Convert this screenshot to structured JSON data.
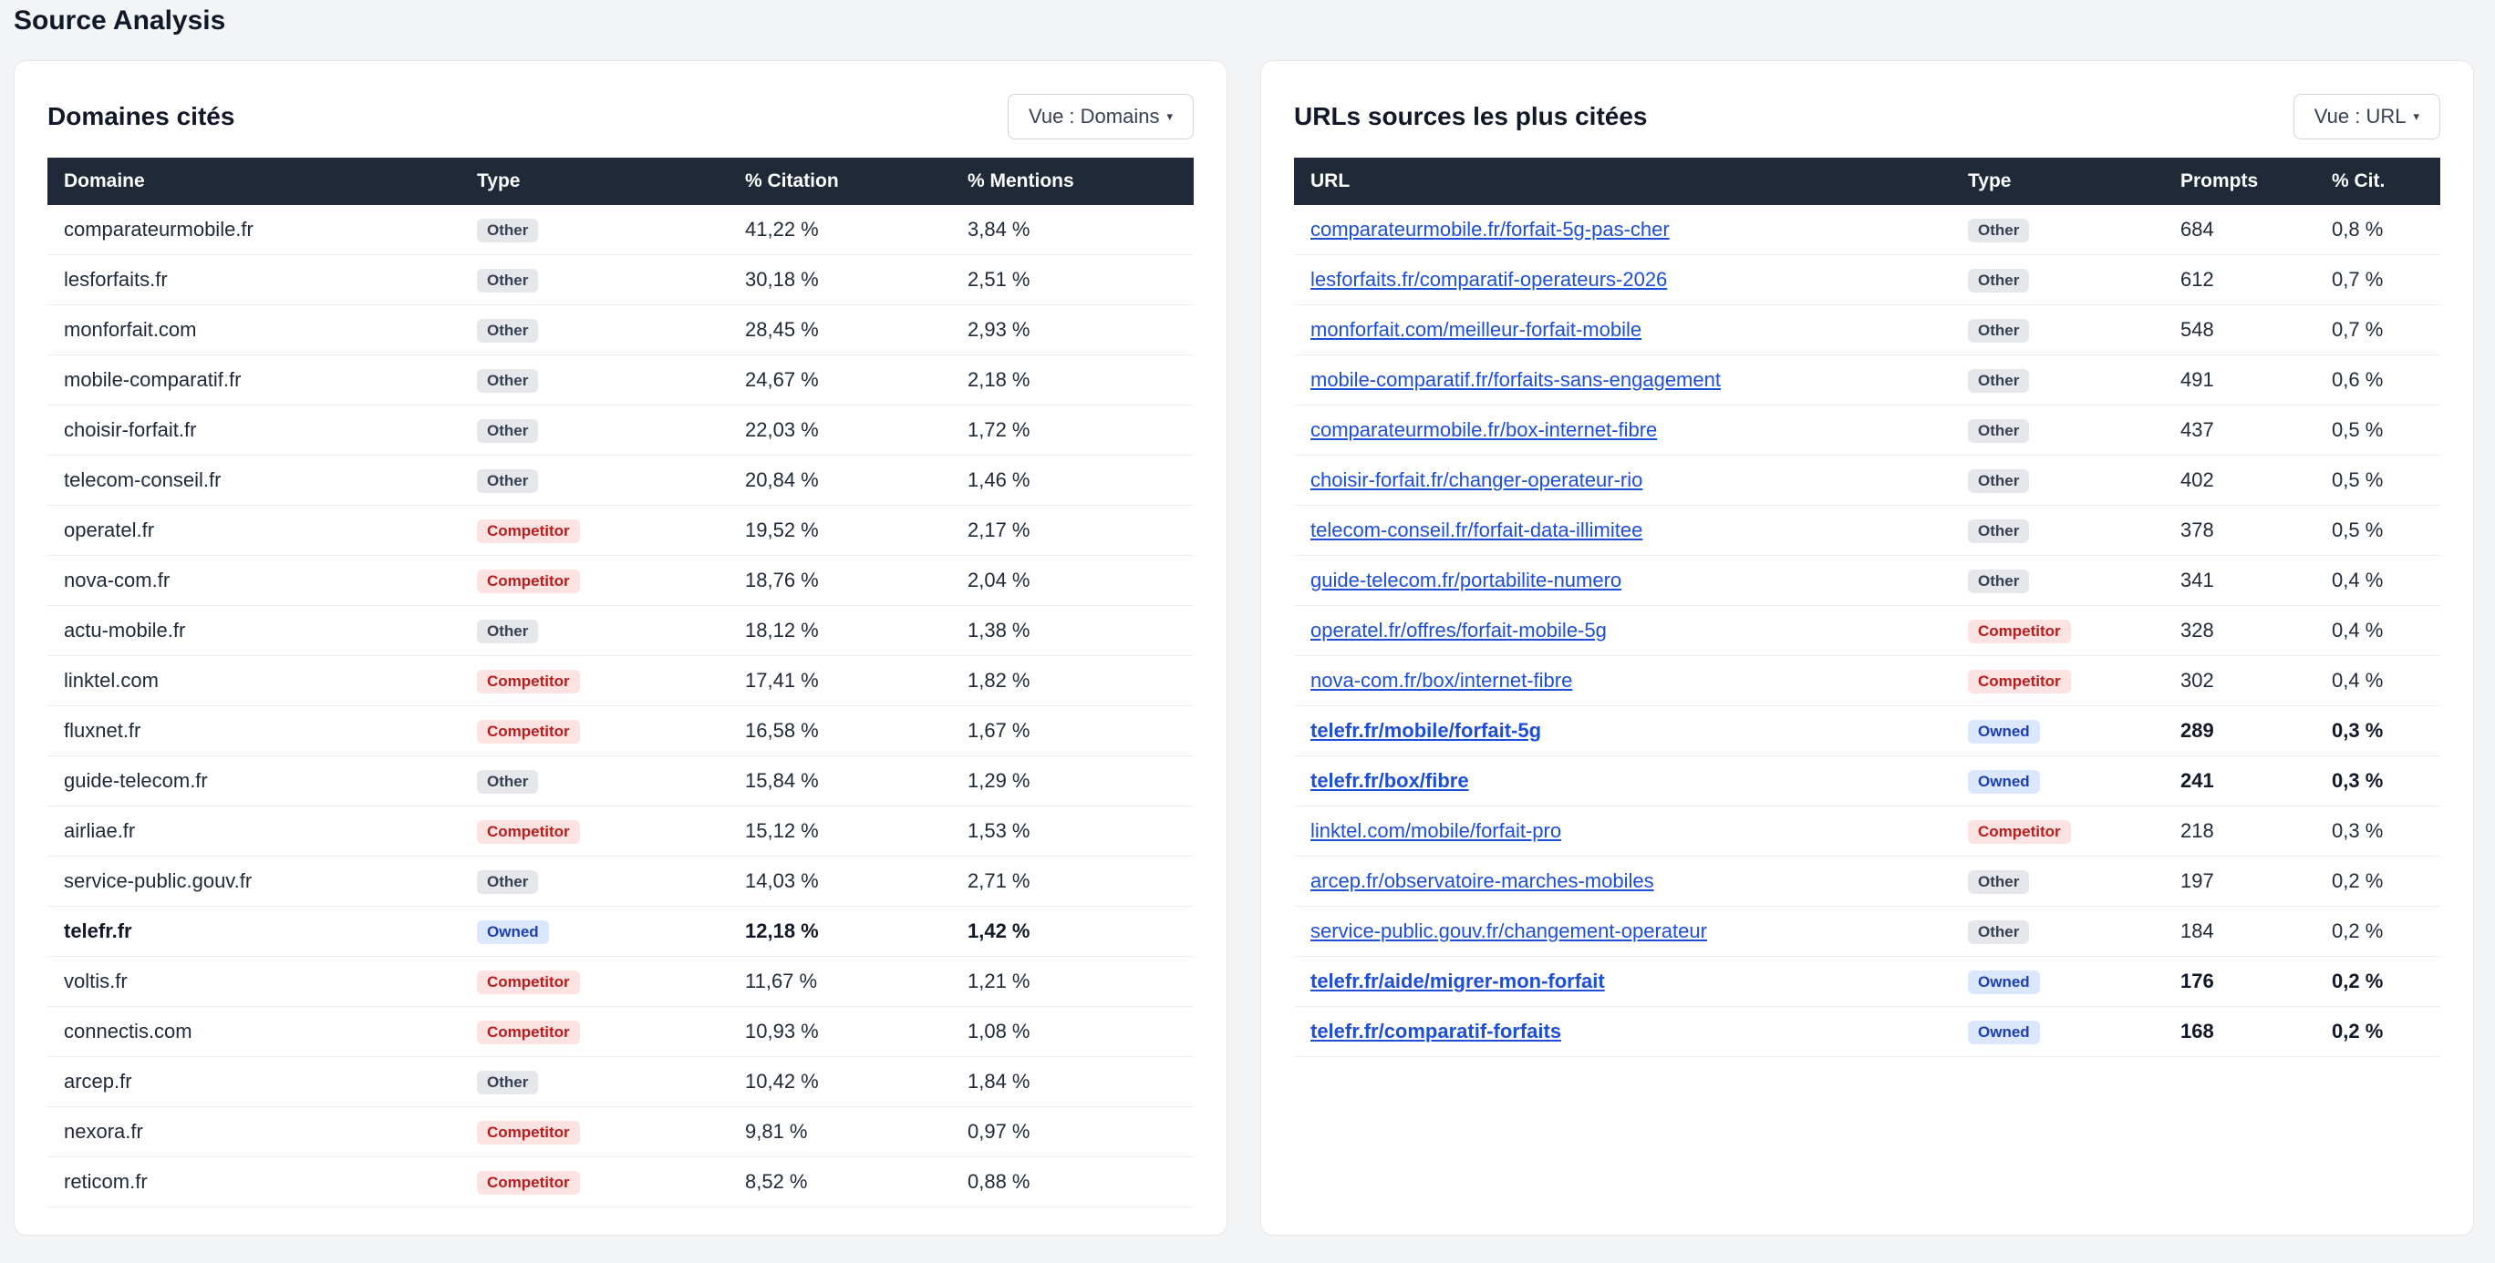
{
  "page": {
    "title": "Source Analysis"
  },
  "colors": {
    "header_bg": "#1f2937",
    "link": "#1d4ed8",
    "badge_other_bg": "#e5e7eb",
    "badge_competitor_bg": "#fde2e2",
    "badge_owned_bg": "#dbe7fe"
  },
  "domains_panel": {
    "title": "Domaines cités",
    "view_button": "Vue : Domains",
    "caret_icon": "▾",
    "columns": [
      "Domaine",
      "Type",
      "% Citation",
      "% Mentions"
    ],
    "rows": [
      {
        "domain": "comparateurmobile.fr",
        "type": "Other",
        "citation": "41,22 %",
        "mentions": "3,84 %"
      },
      {
        "domain": "lesforfaits.fr",
        "type": "Other",
        "citation": "30,18 %",
        "mentions": "2,51 %"
      },
      {
        "domain": "monforfait.com",
        "type": "Other",
        "citation": "28,45 %",
        "mentions": "2,93 %"
      },
      {
        "domain": "mobile-comparatif.fr",
        "type": "Other",
        "citation": "24,67 %",
        "mentions": "2,18 %"
      },
      {
        "domain": "choisir-forfait.fr",
        "type": "Other",
        "citation": "22,03 %",
        "mentions": "1,72 %"
      },
      {
        "domain": "telecom-conseil.fr",
        "type": "Other",
        "citation": "20,84 %",
        "mentions": "1,46 %"
      },
      {
        "domain": "operatel.fr",
        "type": "Competitor",
        "citation": "19,52 %",
        "mentions": "2,17 %"
      },
      {
        "domain": "nova-com.fr",
        "type": "Competitor",
        "citation": "18,76 %",
        "mentions": "2,04 %"
      },
      {
        "domain": "actu-mobile.fr",
        "type": "Other",
        "citation": "18,12 %",
        "mentions": "1,38 %"
      },
      {
        "domain": "linktel.com",
        "type": "Competitor",
        "citation": "17,41 %",
        "mentions": "1,82 %"
      },
      {
        "domain": "fluxnet.fr",
        "type": "Competitor",
        "citation": "16,58 %",
        "mentions": "1,67 %"
      },
      {
        "domain": "guide-telecom.fr",
        "type": "Other",
        "citation": "15,84 %",
        "mentions": "1,29 %"
      },
      {
        "domain": "airliae.fr",
        "type": "Competitor",
        "citation": "15,12 %",
        "mentions": "1,53 %"
      },
      {
        "domain": "service-public.gouv.fr",
        "type": "Other",
        "citation": "14,03 %",
        "mentions": "2,71 %"
      },
      {
        "domain": "telefr.fr",
        "type": "Owned",
        "citation": "12,18 %",
        "mentions": "1,42 %"
      },
      {
        "domain": "voltis.fr",
        "type": "Competitor",
        "citation": "11,67 %",
        "mentions": "1,21 %"
      },
      {
        "domain": "connectis.com",
        "type": "Competitor",
        "citation": "10,93 %",
        "mentions": "1,08 %"
      },
      {
        "domain": "arcep.fr",
        "type": "Other",
        "citation": "10,42 %",
        "mentions": "1,84 %"
      },
      {
        "domain": "nexora.fr",
        "type": "Competitor",
        "citation": "9,81 %",
        "mentions": "0,97 %"
      },
      {
        "domain": "reticom.fr",
        "type": "Competitor",
        "citation": "8,52 %",
        "mentions": "0,88 %"
      }
    ]
  },
  "urls_panel": {
    "title": "URLs sources les plus citées",
    "view_button": "Vue : URL",
    "caret_icon": "▾",
    "columns": [
      "URL",
      "Type",
      "Prompts",
      "% Cit."
    ],
    "rows": [
      {
        "url": "comparateurmobile.fr/forfait-5g-pas-cher",
        "type": "Other",
        "prompts": "684",
        "cit": "0,8 %"
      },
      {
        "url": "lesforfaits.fr/comparatif-operateurs-2026",
        "type": "Other",
        "prompts": "612",
        "cit": "0,7 %"
      },
      {
        "url": "monforfait.com/meilleur-forfait-mobile",
        "type": "Other",
        "prompts": "548",
        "cit": "0,7 %"
      },
      {
        "url": "mobile-comparatif.fr/forfaits-sans-engagement",
        "type": "Other",
        "prompts": "491",
        "cit": "0,6 %"
      },
      {
        "url": "comparateurmobile.fr/box-internet-fibre",
        "type": "Other",
        "prompts": "437",
        "cit": "0,5 %"
      },
      {
        "url": "choisir-forfait.fr/changer-operateur-rio",
        "type": "Other",
        "prompts": "402",
        "cit": "0,5 %"
      },
      {
        "url": "telecom-conseil.fr/forfait-data-illimitee",
        "type": "Other",
        "prompts": "378",
        "cit": "0,5 %"
      },
      {
        "url": "guide-telecom.fr/portabilite-numero",
        "type": "Other",
        "prompts": "341",
        "cit": "0,4 %"
      },
      {
        "url": "operatel.fr/offres/forfait-mobile-5g",
        "type": "Competitor",
        "prompts": "328",
        "cit": "0,4 %"
      },
      {
        "url": "nova-com.fr/box/internet-fibre",
        "type": "Competitor",
        "prompts": "302",
        "cit": "0,4 %"
      },
      {
        "url": "telefr.fr/mobile/forfait-5g",
        "type": "Owned",
        "prompts": "289",
        "cit": "0,3 %"
      },
      {
        "url": "telefr.fr/box/fibre",
        "type": "Owned",
        "prompts": "241",
        "cit": "0,3 %"
      },
      {
        "url": "linktel.com/mobile/forfait-pro",
        "type": "Competitor",
        "prompts": "218",
        "cit": "0,3 %"
      },
      {
        "url": "arcep.fr/observatoire-marches-mobiles",
        "type": "Other",
        "prompts": "197",
        "cit": "0,2 %"
      },
      {
        "url": "service-public.gouv.fr/changement-operateur",
        "type": "Other",
        "prompts": "184",
        "cit": "0,2 %"
      },
      {
        "url": "telefr.fr/aide/migrer-mon-forfait",
        "type": "Owned",
        "prompts": "176",
        "cit": "0,2 %"
      },
      {
        "url": "telefr.fr/comparatif-forfaits",
        "type": "Owned",
        "prompts": "168",
        "cit": "0,2 %"
      }
    ]
  }
}
